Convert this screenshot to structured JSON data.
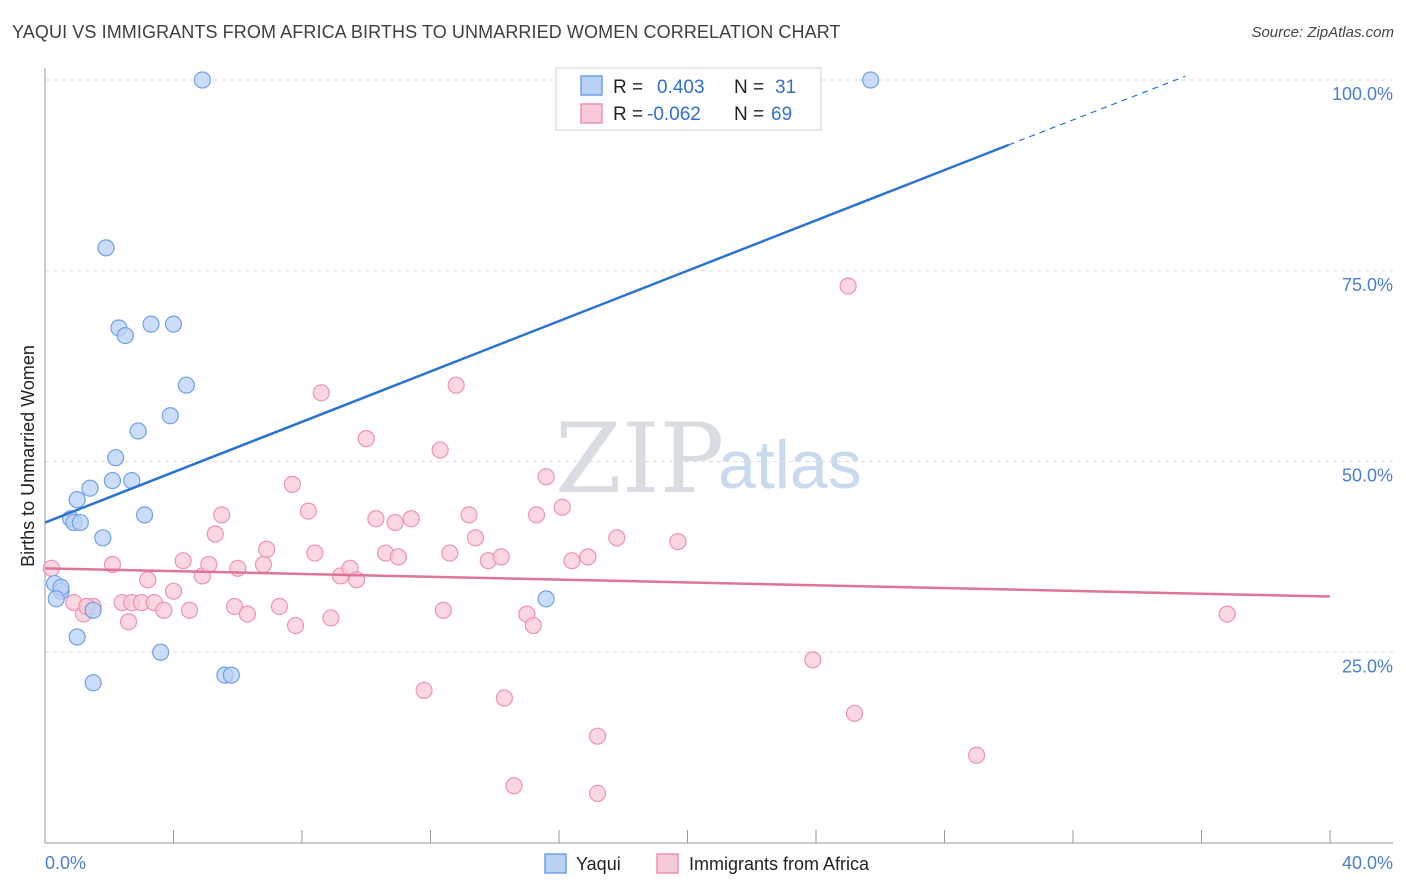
{
  "header": {
    "title": "YAQUI VS IMMIGRANTS FROM AFRICA BIRTHS TO UNMARRIED WOMEN CORRELATION CHART",
    "source": "Source: ZipAtlas.com"
  },
  "watermark": {
    "zip": "ZIP",
    "atlas": "atlas"
  },
  "legend": {
    "rows": [
      {
        "r_label": "R =",
        "r_value": "0.403",
        "n_label": "N =",
        "n_value": "31"
      },
      {
        "r_label": "R =",
        "r_value": "-0.062",
        "n_label": "N =",
        "n_value": "69"
      }
    ]
  },
  "chart_data": {
    "type": "scatter",
    "xlabel": "",
    "ylabel": "Births to Unmarried Women",
    "xlim": [
      0,
      40
    ],
    "ylim": [
      0,
      105
    ],
    "x_tick_labels": [
      "0.0%",
      "40.0%"
    ],
    "y_ticks": [
      25,
      50,
      75,
      100
    ],
    "y_tick_labels": [
      "25.0%",
      "50.0%",
      "75.0%",
      "100.0%"
    ],
    "series": [
      {
        "name": "Yaqui",
        "color": "#6fa0e8",
        "fill": "#b9d1f5",
        "trend": {
          "x0": 0,
          "y0": 42.0,
          "x1": 30,
          "y1": 91.5,
          "dash_to_x": 35.5,
          "dash_to_y": 100.5,
          "color": "#2b73d1"
        },
        "points": [
          [
            0.3,
            34
          ],
          [
            0.5,
            33
          ],
          [
            0.8,
            42.5
          ],
          [
            0.9,
            42
          ],
          [
            1.1,
            42
          ],
          [
            1.0,
            27
          ],
          [
            1.0,
            45
          ],
          [
            1.4,
            46.5
          ],
          [
            1.5,
            30.5
          ],
          [
            1.5,
            21
          ],
          [
            1.8,
            40
          ],
          [
            1.9,
            78
          ],
          [
            2.1,
            47.5
          ],
          [
            2.2,
            50.5
          ],
          [
            2.3,
            67.5
          ],
          [
            2.5,
            66.5
          ],
          [
            2.7,
            47.5
          ],
          [
            2.9,
            54
          ],
          [
            3.1,
            43
          ],
          [
            3.3,
            68
          ],
          [
            3.6,
            25
          ],
          [
            3.9,
            56
          ],
          [
            4.0,
            68
          ],
          [
            4.4,
            60
          ],
          [
            4.9,
            100
          ],
          [
            5.6,
            22
          ],
          [
            5.8,
            22
          ],
          [
            15.6,
            32
          ],
          [
            25.7,
            100
          ],
          [
            0.5,
            33.5
          ],
          [
            0.35,
            32
          ]
        ]
      },
      {
        "name": "Immigrants from Africa",
        "color": "#ee93ae",
        "fill": "#f8c9d7",
        "trend": {
          "x0": 0,
          "y0": 36.0,
          "x1": 40,
          "y1": 32.3,
          "color": "#e07399"
        },
        "points": [
          [
            0.2,
            36
          ],
          [
            0.5,
            33
          ],
          [
            0.9,
            31.5
          ],
          [
            1.2,
            30
          ],
          [
            1.5,
            31
          ],
          [
            2.1,
            36.5
          ],
          [
            2.4,
            31.5
          ],
          [
            2.6,
            29
          ],
          [
            2.7,
            31.5
          ],
          [
            3.0,
            31.5
          ],
          [
            3.2,
            34.5
          ],
          [
            3.4,
            31.5
          ],
          [
            3.7,
            30.5
          ],
          [
            4.0,
            33
          ],
          [
            4.3,
            37
          ],
          [
            4.5,
            30.5
          ],
          [
            4.9,
            35
          ],
          [
            5.1,
            36.5
          ],
          [
            5.3,
            40.5
          ],
          [
            5.5,
            43
          ],
          [
            5.9,
            31
          ],
          [
            6.0,
            36
          ],
          [
            6.3,
            30
          ],
          [
            6.8,
            36.5
          ],
          [
            6.9,
            38.5
          ],
          [
            7.3,
            31
          ],
          [
            7.7,
            47
          ],
          [
            7.8,
            28.5
          ],
          [
            8.2,
            43.5
          ],
          [
            8.4,
            38
          ],
          [
            8.6,
            59
          ],
          [
            8.9,
            29.5
          ],
          [
            9.2,
            35
          ],
          [
            9.5,
            36
          ],
          [
            9.7,
            34.5
          ],
          [
            10.0,
            53
          ],
          [
            10.3,
            42.5
          ],
          [
            10.6,
            38
          ],
          [
            10.9,
            42
          ],
          [
            11.0,
            37.5
          ],
          [
            11.4,
            42.5
          ],
          [
            11.8,
            20
          ],
          [
            12.3,
            51.5
          ],
          [
            12.4,
            30.5
          ],
          [
            12.6,
            38
          ],
          [
            12.8,
            60
          ],
          [
            13.2,
            43
          ],
          [
            13.4,
            40
          ],
          [
            13.8,
            37
          ],
          [
            14.2,
            37.5
          ],
          [
            14.3,
            19
          ],
          [
            14.6,
            7.5
          ],
          [
            15.0,
            30
          ],
          [
            15.2,
            28.5
          ],
          [
            15.3,
            43
          ],
          [
            15.6,
            48
          ],
          [
            16.1,
            44
          ],
          [
            16.4,
            37
          ],
          [
            16.9,
            37.5
          ],
          [
            17.2,
            14
          ],
          [
            17.2,
            6.5
          ],
          [
            17.8,
            40
          ],
          [
            19.7,
            39.5
          ],
          [
            23.9,
            24
          ],
          [
            25.0,
            73
          ],
          [
            25.2,
            17
          ],
          [
            29.0,
            11.5
          ],
          [
            36.8,
            30
          ],
          [
            1.3,
            31
          ]
        ]
      }
    ]
  }
}
